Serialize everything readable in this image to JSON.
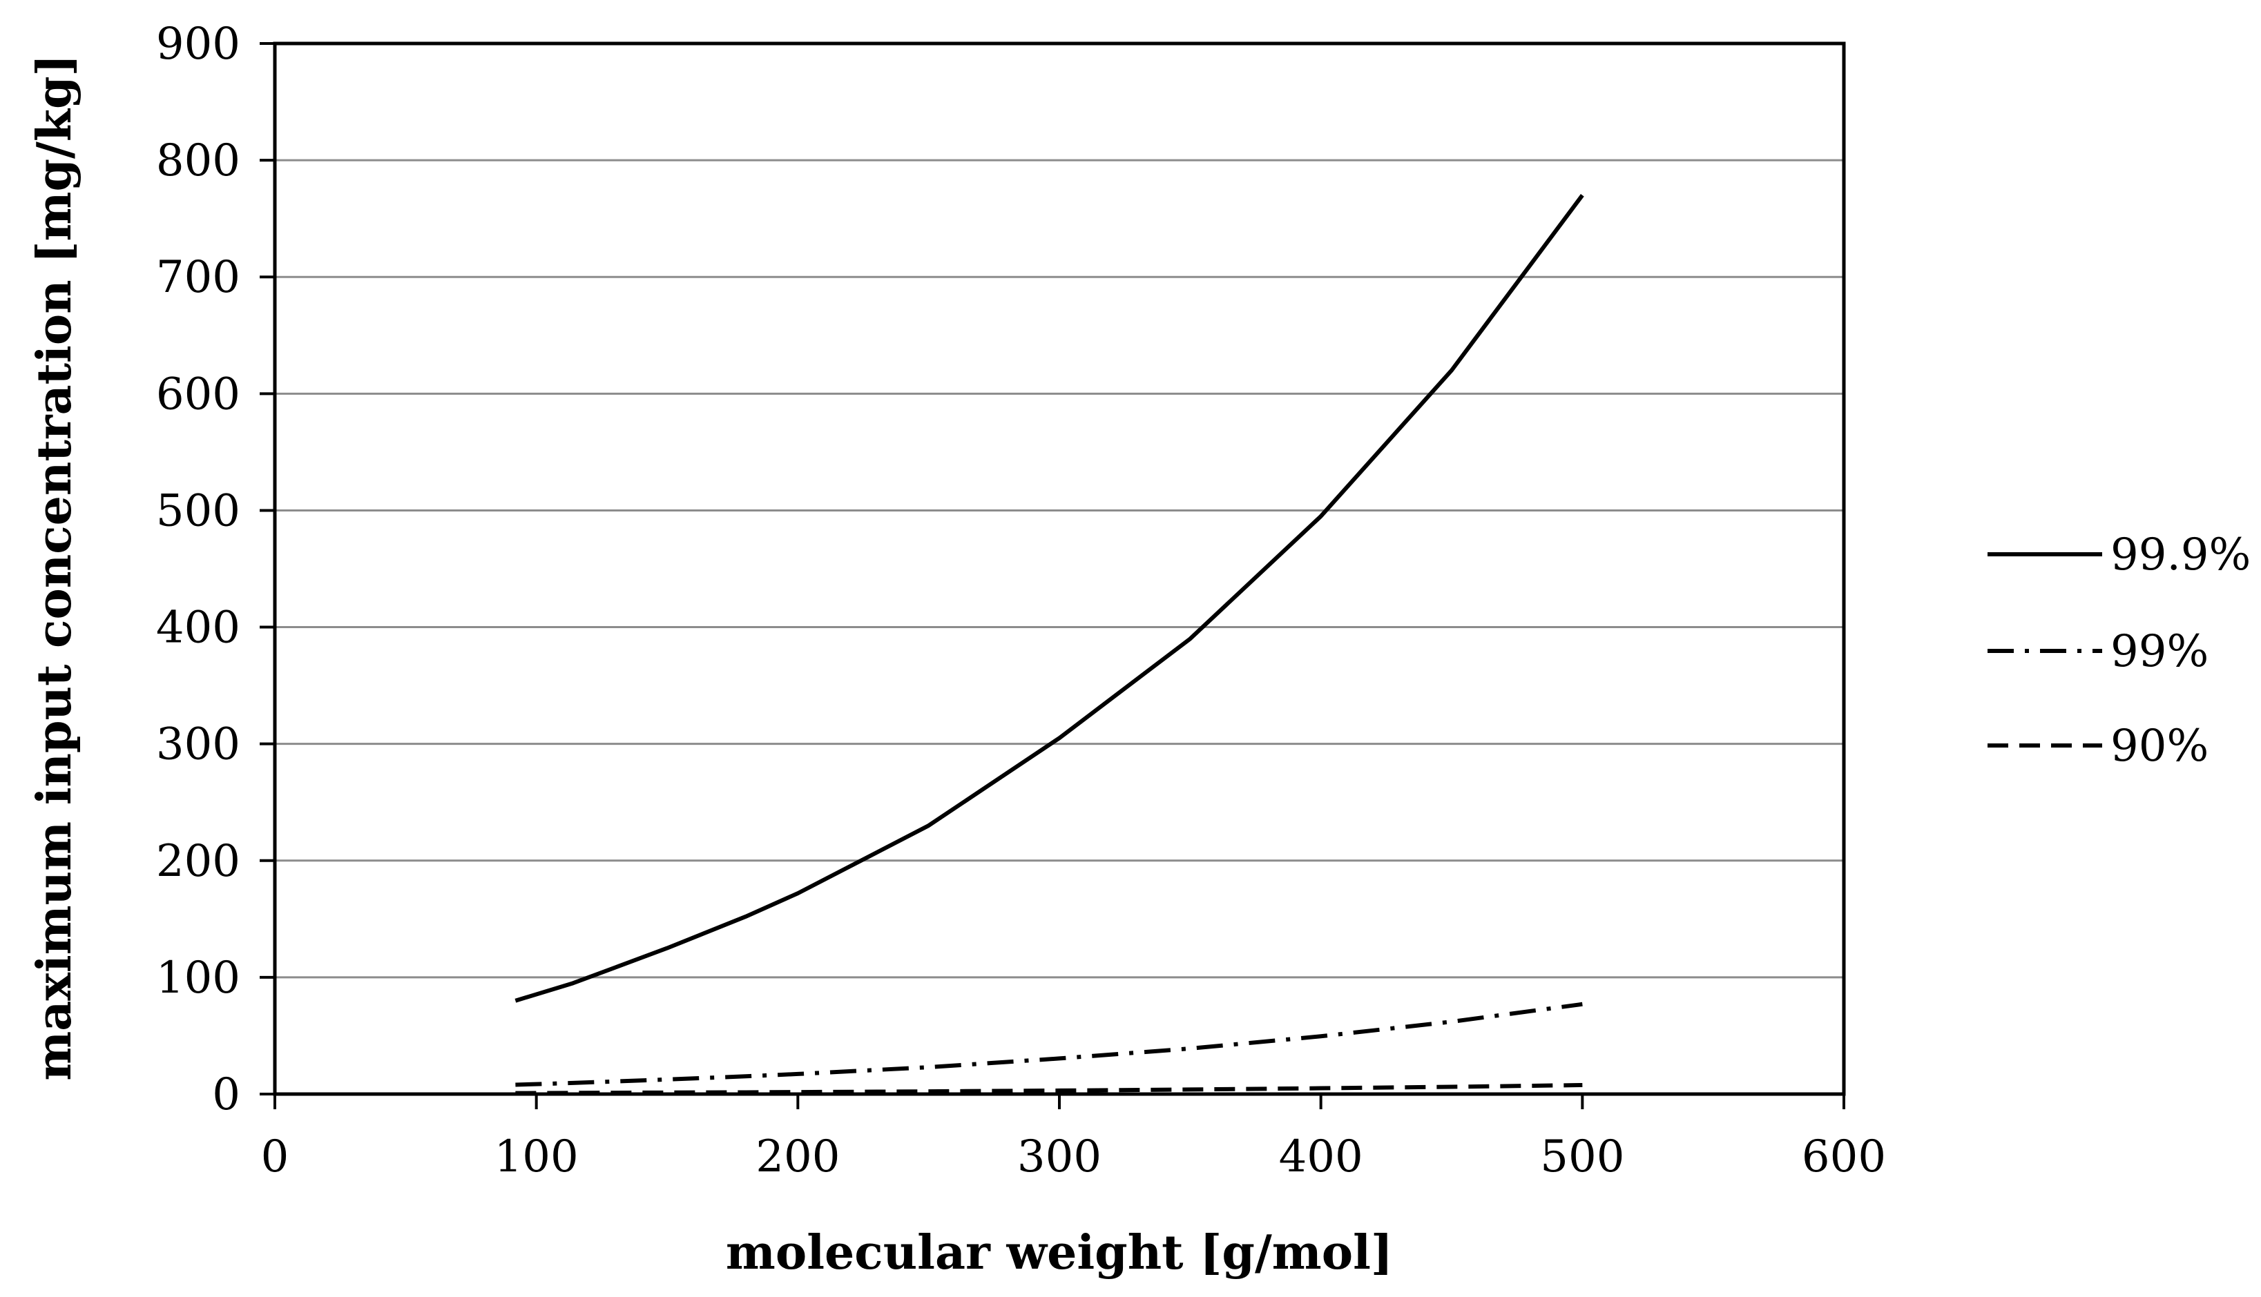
{
  "chart_data": {
    "type": "line",
    "title": "",
    "xlabel": "molecular weight [g/mol]",
    "ylabel": "maximum input concentration [mg/kg]",
    "xlim": [
      0,
      600
    ],
    "ylim": [
      0,
      900
    ],
    "x_ticks": [
      0,
      100,
      200,
      300,
      400,
      500,
      600
    ],
    "y_ticks": [
      0,
      100,
      200,
      300,
      400,
      500,
      600,
      700,
      800,
      900
    ],
    "grid": "horizontal",
    "legend_position": "right",
    "series": [
      {
        "name": "99.9%",
        "style": "solid",
        "x": [
          92,
          114,
          150,
          180,
          200,
          250,
          300,
          350,
          400,
          450,
          500
        ],
        "y": [
          80,
          95,
          125,
          152,
          172,
          230,
          305,
          390,
          495,
          620,
          770
        ]
      },
      {
        "name": "99%",
        "style": "dash-dot",
        "x": [
          92,
          114,
          150,
          180,
          200,
          250,
          300,
          350,
          400,
          450,
          500
        ],
        "y": [
          8,
          9.5,
          12.5,
          15.2,
          17.2,
          23,
          30.5,
          39,
          49.5,
          62,
          77
        ]
      },
      {
        "name": "90%",
        "style": "dashed",
        "x": [
          92,
          114,
          150,
          180,
          200,
          250,
          300,
          350,
          400,
          450,
          500
        ],
        "y": [
          0.8,
          1,
          1.3,
          1.5,
          1.7,
          2.3,
          3,
          3.9,
          5,
          6.2,
          7.7
        ]
      }
    ]
  }
}
